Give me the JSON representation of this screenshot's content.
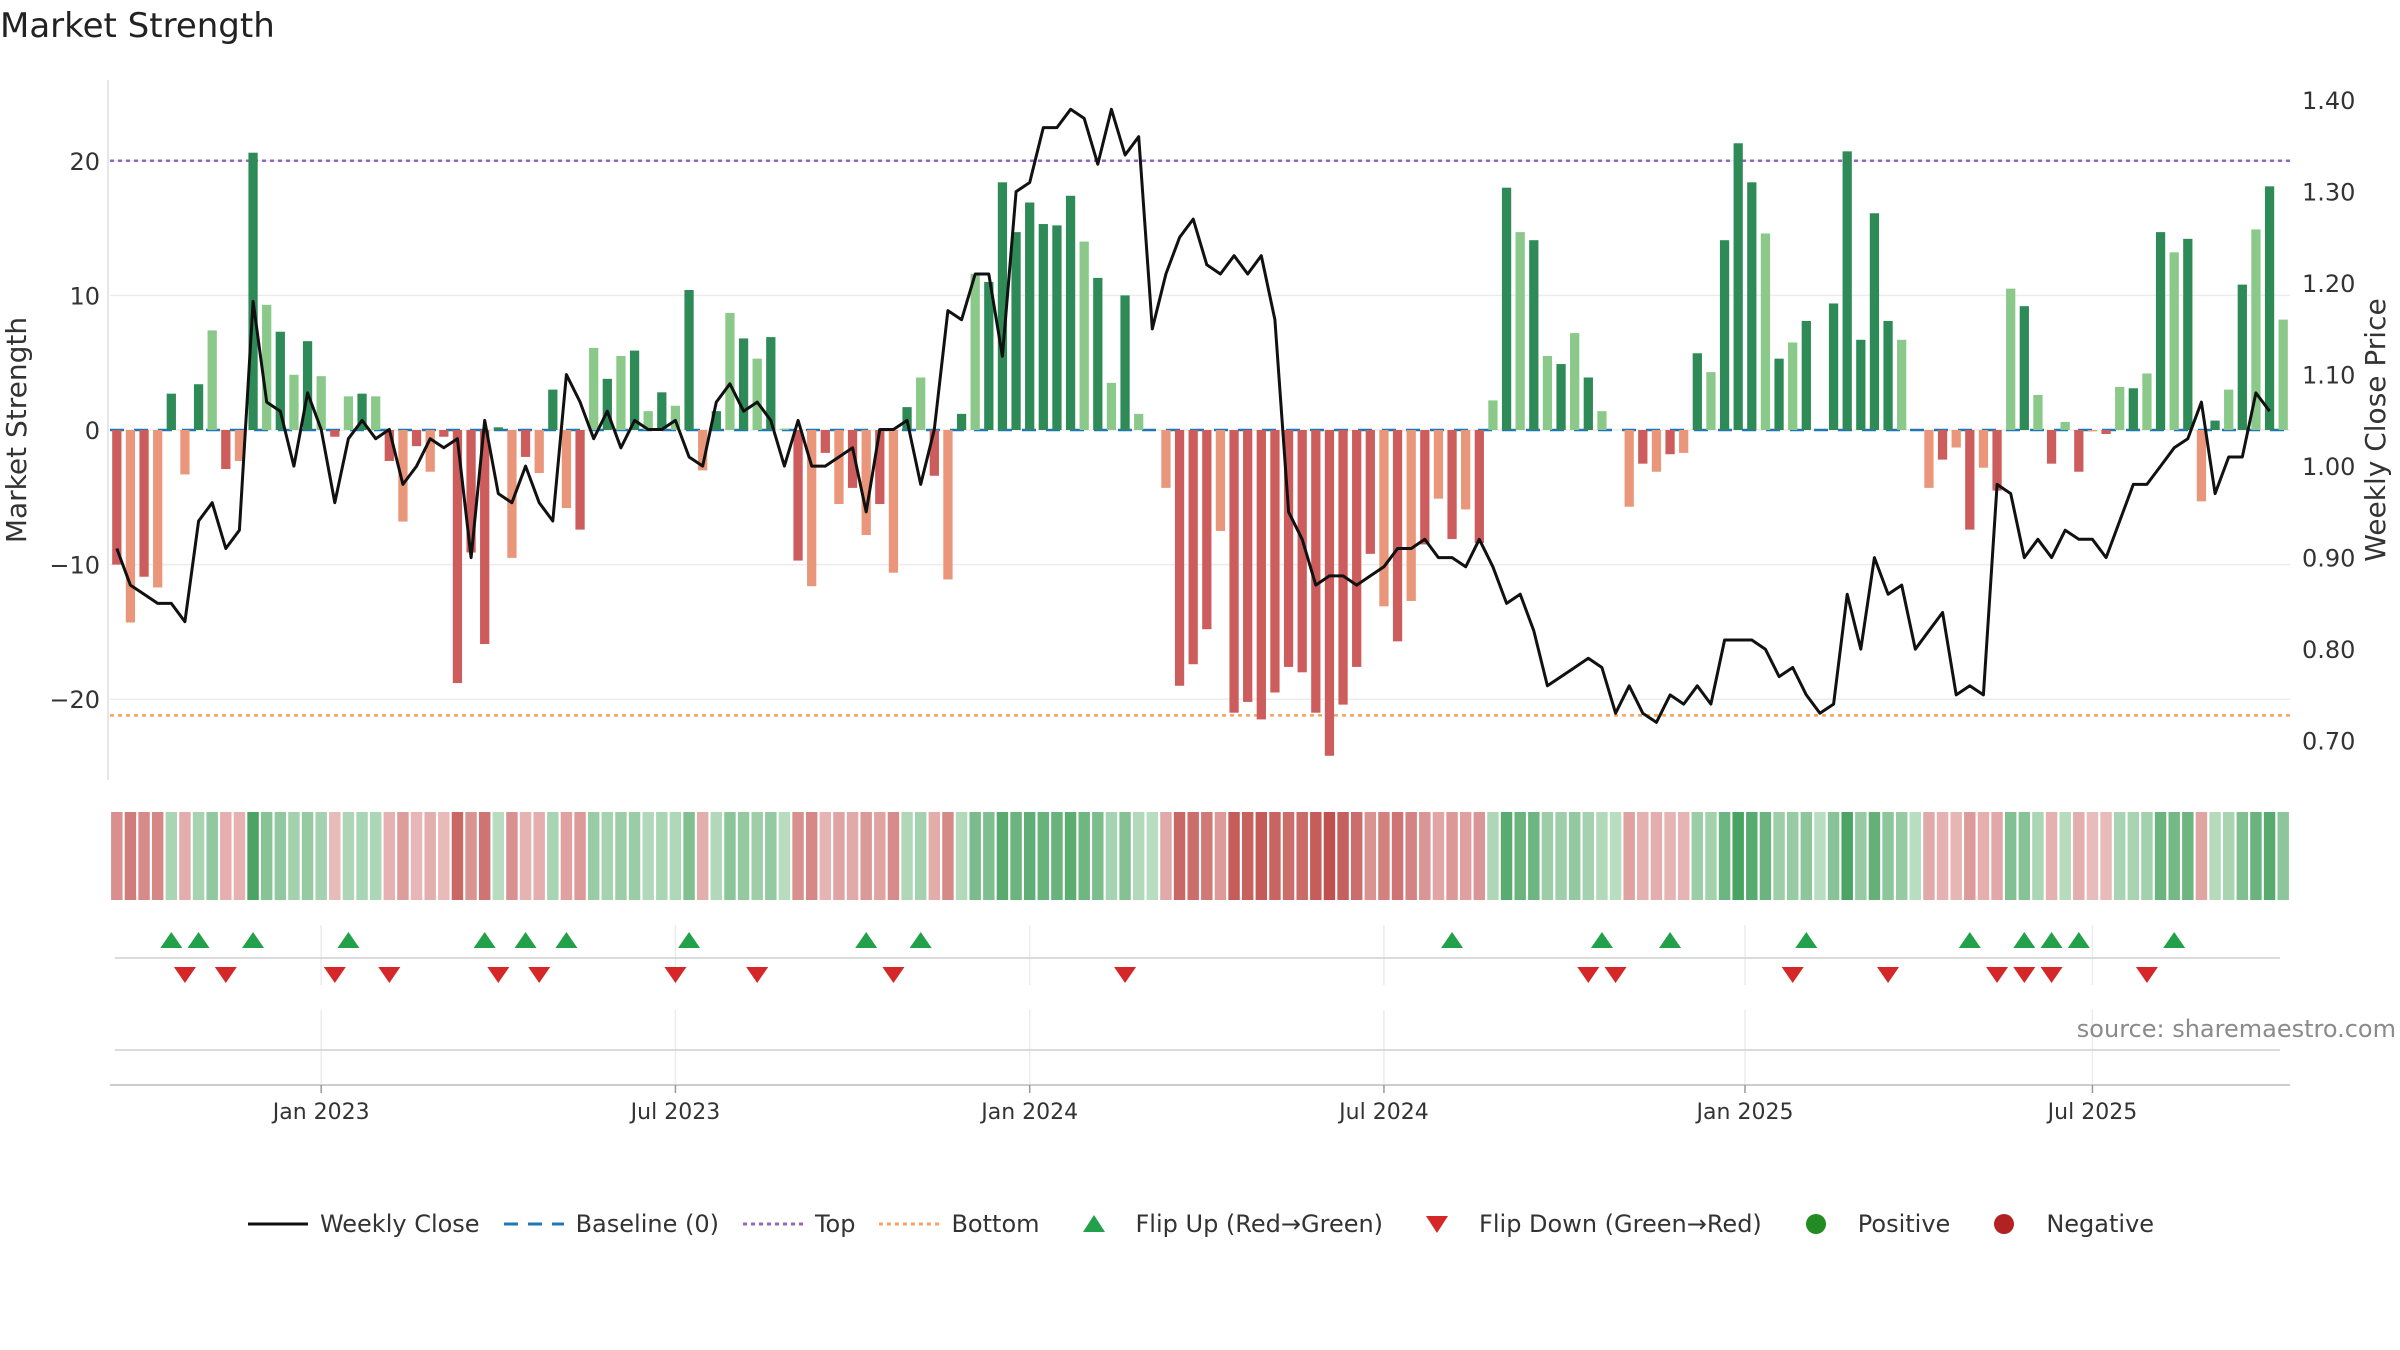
{
  "chart_data": {
    "type": "bar",
    "title": "Market Strength",
    "ylabel": "Market Strength",
    "y2label": "Weekly Close Price",
    "ylim": [
      -26,
      26
    ],
    "y2lim": [
      0.657,
      1.422
    ],
    "yticks": [
      {
        "label": "20",
        "value": 20
      },
      {
        "label": "10",
        "value": 10
      },
      {
        "label": "0",
        "value": 0
      },
      {
        "label": "−10",
        "value": -10
      },
      {
        "label": "−20",
        "value": -20
      }
    ],
    "y2ticks": [
      {
        "label": "1.40",
        "value": 1.4
      },
      {
        "label": "1.30",
        "value": 1.3
      },
      {
        "label": "1.20",
        "value": 1.2
      },
      {
        "label": "1.10",
        "value": 1.1
      },
      {
        "label": "1.00",
        "value": 1.0
      },
      {
        "label": "0.90",
        "value": 0.9
      },
      {
        "label": "0.80",
        "value": 0.8
      },
      {
        "label": "0.70",
        "value": 0.7
      }
    ],
    "xticks": [
      {
        "label": "Jan 2023",
        "week": 15
      },
      {
        "label": "Jul 2023",
        "week": 41
      },
      {
        "label": "Jan 2024",
        "week": 67
      },
      {
        "label": "Jul 2024",
        "week": 93
      },
      {
        "label": "Jan 2025",
        "week": 119.5
      },
      {
        "label": "Jul 2025",
        "week": 145
      }
    ],
    "top": 20,
    "bottom": -21.2,
    "grid": true,
    "legend_position": "bottom-center",
    "strength": [
      -10,
      -14.3,
      -10.9,
      -11.7,
      2.7,
      -3.3,
      3.4,
      7.4,
      -2.9,
      -2.3,
      20.6,
      9.3,
      7.3,
      4.1,
      6.6,
      4,
      -0.5,
      2.5,
      2.7,
      2.5,
      -2.3,
      -6.8,
      -1.2,
      -3.1,
      -0.5,
      -18.8,
      -9.1,
      -15.9,
      0.2,
      -9.5,
      -2,
      -3.2,
      3,
      -5.8,
      -7.4,
      6.1,
      3.8,
      5.5,
      5.9,
      1.4,
      2.8,
      1.8,
      10.4,
      -3,
      1.4,
      8.7,
      6.8,
      5.3,
      6.9,
      0.1,
      -9.7,
      -11.6,
      -1.7,
      -5.5,
      -4.3,
      -7.8,
      -5.5,
      -10.6,
      1.7,
      3.9,
      -3.4,
      -11.1,
      1.2,
      11.6,
      11,
      18.4,
      14.7,
      16.9,
      15.3,
      15.2,
      17.4,
      14,
      11.3,
      3.5,
      10,
      1.2,
      0,
      -4.3,
      -19,
      -17.4,
      -14.8,
      -7.5,
      -21,
      -20.2,
      -21.5,
      -19.5,
      -17.6,
      -18,
      -21,
      -24.2,
      -20.4,
      -17.6,
      -9.2,
      -13.1,
      -15.7,
      -12.7,
      -8.5,
      -5.1,
      -8.1,
      -5.9,
      -8.4,
      2.2,
      18,
      14.7,
      14.1,
      5.5,
      4.9,
      7.2,
      3.9,
      1.4,
      0,
      -5.7,
      -2.5,
      -3.1,
      -1.8,
      -1.7,
      5.7,
      4.3,
      14.1,
      21.3,
      18.4,
      14.6,
      5.3,
      6.5,
      8.1,
      0,
      9.4,
      20.7,
      6.7,
      16.1,
      8.1,
      6.7,
      0,
      -4.3,
      -2.2,
      -1.3,
      -7.4,
      -2.8,
      -4.5,
      10.5,
      9.2,
      2.6,
      -2.5,
      0.6,
      -3.1,
      -0.1,
      -0.3,
      3.2,
      3.1,
      4.2,
      14.7,
      13.2,
      14.2,
      -5.3,
      0.7,
      3,
      10.8,
      14.9,
      18.1,
      8.2
    ],
    "close": [
      0.91,
      0.87,
      0.86,
      0.85,
      0.85,
      0.83,
      0.94,
      0.96,
      0.91,
      0.93,
      1.18,
      1.07,
      1.06,
      1.0,
      1.08,
      1.04,
      0.96,
      1.03,
      1.05,
      1.03,
      1.04,
      0.98,
      1.0,
      1.03,
      1.02,
      1.03,
      0.9,
      1.05,
      0.97,
      0.96,
      1.0,
      0.96,
      0.94,
      1.1,
      1.07,
      1.03,
      1.06,
      1.02,
      1.05,
      1.04,
      1.04,
      1.05,
      1.01,
      1.0,
      1.07,
      1.09,
      1.06,
      1.07,
      1.05,
      1.0,
      1.05,
      1.0,
      1.0,
      1.01,
      1.02,
      0.95,
      1.04,
      1.04,
      1.05,
      0.98,
      1.04,
      1.17,
      1.16,
      1.21,
      1.21,
      1.12,
      1.3,
      1.31,
      1.37,
      1.37,
      1.39,
      1.38,
      1.33,
      1.39,
      1.34,
      1.36,
      1.15,
      1.21,
      1.25,
      1.27,
      1.22,
      1.21,
      1.23,
      1.21,
      1.23,
      1.16,
      0.95,
      0.92,
      0.87,
      0.88,
      0.88,
      0.87,
      0.88,
      0.89,
      0.91,
      0.91,
      0.92,
      0.9,
      0.9,
      0.89,
      0.92,
      0.89,
      0.85,
      0.86,
      0.82,
      0.76,
      0.77,
      0.78,
      0.79,
      0.78,
      0.73,
      0.76,
      0.73,
      0.72,
      0.75,
      0.74,
      0.76,
      0.74,
      0.81,
      0.81,
      0.81,
      0.8,
      0.77,
      0.78,
      0.75,
      0.73,
      0.74,
      0.86,
      0.8,
      0.9,
      0.86,
      0.87,
      0.8,
      0.82,
      0.84,
      0.75,
      0.76,
      0.75,
      0.98,
      0.97,
      0.9,
      0.92,
      0.9,
      0.93,
      0.92,
      0.92,
      0.9,
      0.94,
      0.98,
      0.98,
      1.0,
      1.02,
      1.03,
      1.07,
      0.97,
      1.01,
      1.01,
      1.08,
      1.06
    ],
    "flip_up_weeks": [
      4,
      6,
      10,
      17,
      27,
      30,
      33,
      42,
      55,
      59,
      98,
      109,
      114,
      124,
      136,
      140,
      142,
      144,
      151
    ],
    "flip_down_weeks": [
      5,
      8,
      16,
      20,
      28,
      31,
      41,
      47,
      57,
      74,
      108,
      110,
      123,
      130,
      138,
      140,
      142,
      149
    ],
    "legend": [
      {
        "label": "Weekly Close",
        "key": "line-solid"
      },
      {
        "label": "Baseline (0)",
        "key": "line-dashed"
      },
      {
        "label": "Top",
        "key": "line-dotted-purple"
      },
      {
        "label": "Bottom",
        "key": "line-dotted-orange"
      },
      {
        "label": "Flip Up (Red→Green)",
        "key": "triangle-up"
      },
      {
        "label": "Flip Down (Green→Red)",
        "key": "triangle-down"
      },
      {
        "label": "Positive",
        "key": "dot-green"
      },
      {
        "label": "Negative",
        "key": "dot-red"
      }
    ],
    "source": "source: sharemaestro.com"
  },
  "colors": {
    "strong_green": "#2e8b57",
    "light_green": "#8ac98a",
    "strong_red": "#cd5c5c",
    "light_red": "#e9967a",
    "close_line": "#111111",
    "baseline": "#1f77b4",
    "top_line": "#9467bd",
    "bottom_line": "#f4a460",
    "flip_up": "#22a04a",
    "flip_down": "#d62728",
    "positive": "#228b22",
    "negative": "#b22222"
  }
}
